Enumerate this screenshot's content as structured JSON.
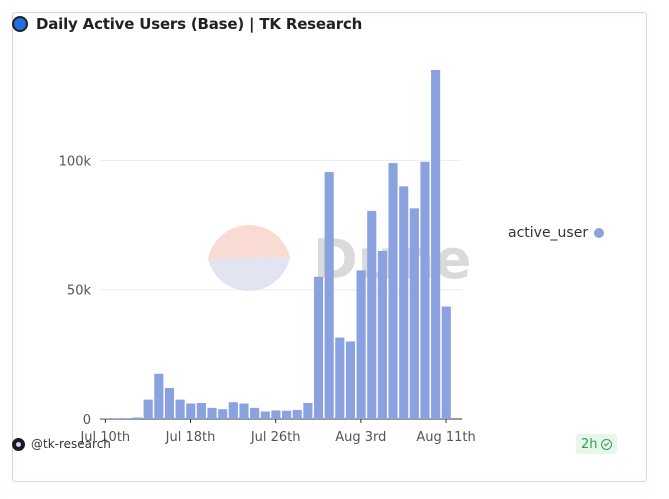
{
  "title": "Daily Active Users (Base) | TK Research",
  "watermark": "Dune",
  "author_handle": "@tk-research",
  "refresh_badge": "2h",
  "colors": {
    "bar": "#8aa3e0",
    "title_logo": "#1f6fe0",
    "watermark_top": "#f9d7ce",
    "watermark_bottom": "#dfe1ef"
  },
  "chart_data": {
    "type": "bar",
    "title": "Daily Active Users (Base) | TK Research",
    "legend_position": "right",
    "grid": true,
    "ylim": [
      0,
      135000
    ],
    "y_ticks": [
      {
        "value": 0,
        "label": "0"
      },
      {
        "value": 50000,
        "label": "50k"
      },
      {
        "value": 100000,
        "label": "100k"
      }
    ],
    "x_ticks": [
      "Jul 10th",
      "Jul 18th",
      "Jul 26th",
      "Aug 3rd",
      "Aug 11th"
    ],
    "x_tick_dates": [
      "2023-07-10",
      "2023-07-18",
      "2023-07-26",
      "2023-08-03",
      "2023-08-11"
    ],
    "series": [
      {
        "name": "active_user",
        "x": [
          "2023-07-10",
          "2023-07-11",
          "2023-07-12",
          "2023-07-13",
          "2023-07-14",
          "2023-07-15",
          "2023-07-16",
          "2023-07-17",
          "2023-07-18",
          "2023-07-19",
          "2023-07-20",
          "2023-07-21",
          "2023-07-22",
          "2023-07-23",
          "2023-07-24",
          "2023-07-25",
          "2023-07-26",
          "2023-07-27",
          "2023-07-28",
          "2023-07-29",
          "2023-07-30",
          "2023-07-31",
          "2023-08-01",
          "2023-08-02",
          "2023-08-03",
          "2023-08-04",
          "2023-08-05",
          "2023-08-06",
          "2023-08-07",
          "2023-08-08",
          "2023-08-09",
          "2023-08-10",
          "2023-08-11",
          "2023-08-12"
        ],
        "values": [
          300,
          300,
          300,
          600,
          7500,
          17500,
          12000,
          7500,
          6000,
          6200,
          4300,
          3800,
          6500,
          6000,
          4300,
          2900,
          3300,
          3200,
          3500,
          6200,
          55000,
          95500,
          31500,
          30000,
          57500,
          80500,
          65000,
          99000,
          90000,
          81500,
          99500,
          135000,
          43500,
          0
        ]
      }
    ]
  }
}
